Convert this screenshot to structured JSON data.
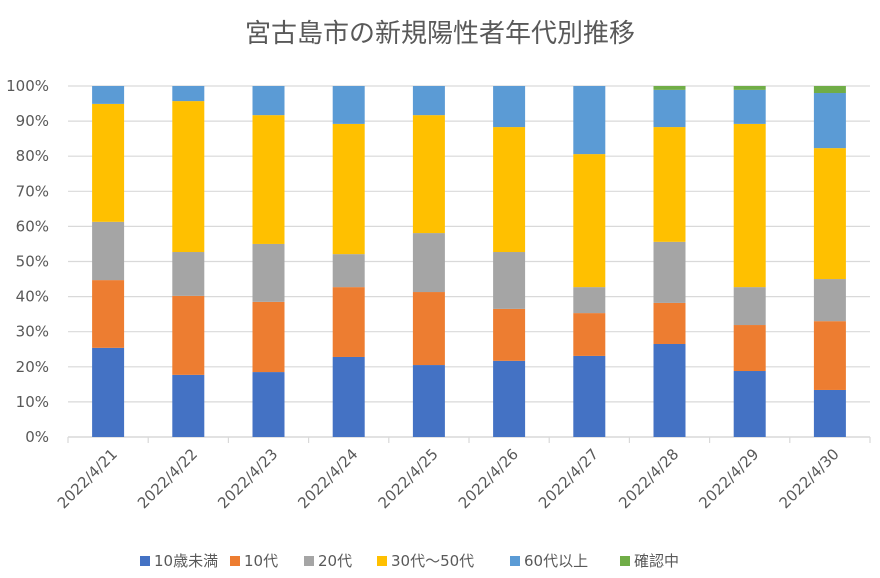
{
  "chart_data": {
    "type": "bar",
    "stacked": "percent",
    "title": "宮古島市の新規陽性者年代別推移",
    "xlabel": "",
    "ylabel": "",
    "ylim": [
      0,
      100
    ],
    "yticks": [
      "0%",
      "10%",
      "20%",
      "30%",
      "40%",
      "50%",
      "60%",
      "70%",
      "80%",
      "90%",
      "100%"
    ],
    "grid": true,
    "legend_position": "bottom",
    "categories": [
      "2022/4/21",
      "2022/4/22",
      "2022/4/23",
      "2022/4/24",
      "2022/4/25",
      "2022/4/26",
      "2022/4/27",
      "2022/4/28",
      "2022/4/29",
      "2022/4/30"
    ],
    "series": [
      {
        "name": "10歳未満",
        "color": "#4472C4",
        "values": [
          25.4,
          17.7,
          18.5,
          22.8,
          20.5,
          21.7,
          23.1,
          26.5,
          18.8,
          13.4
        ]
      },
      {
        "name": "10代",
        "color": "#ED7D31",
        "values": [
          19.3,
          22.5,
          20.0,
          19.9,
          20.8,
          14.8,
          12.2,
          11.7,
          13.1,
          19.6
        ]
      },
      {
        "name": "20代",
        "color": "#A5A5A5",
        "values": [
          16.6,
          12.5,
          16.5,
          9.4,
          16.8,
          16.2,
          7.4,
          17.4,
          10.8,
          12.0
        ]
      },
      {
        "name": "30代～50代",
        "color": "#FFC000",
        "values": [
          33.6,
          43.0,
          36.7,
          37.1,
          33.6,
          35.6,
          37.9,
          32.7,
          46.5,
          37.3
        ]
      },
      {
        "name": "60代以上",
        "color": "#5B9BD5",
        "values": [
          5.1,
          4.3,
          8.3,
          10.8,
          8.3,
          11.7,
          19.4,
          10.6,
          9.7,
          15.7
        ]
      },
      {
        "name": "確認中",
        "color": "#70AD47",
        "values": [
          0,
          0,
          0,
          0,
          0,
          0,
          0,
          1.1,
          1.1,
          2.0
        ]
      }
    ]
  }
}
